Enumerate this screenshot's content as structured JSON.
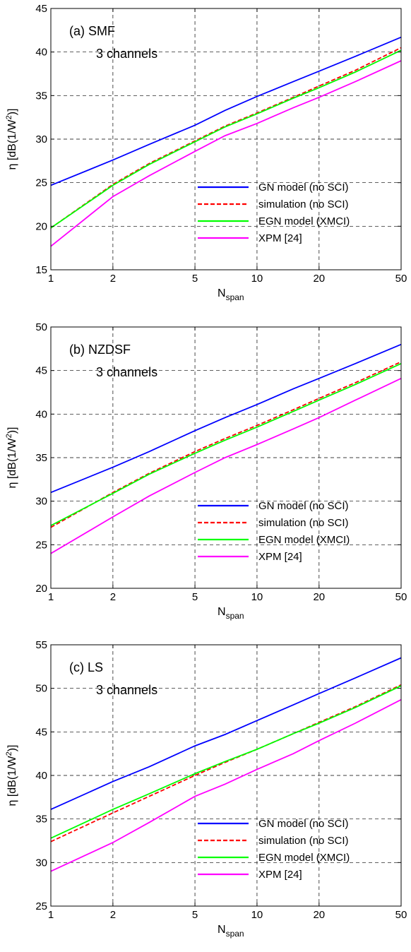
{
  "chart_data": [
    {
      "type": "line",
      "panel_label": "(a) SMF",
      "subtitle": "3 channels",
      "xlabel_main": "N",
      "xlabel_sub": "span",
      "ylabel_main": "η [dB(1/W",
      "ylabel_sup": "2",
      "ylabel_end": ")]",
      "x_scale": "log",
      "xlim": [
        1,
        50
      ],
      "ylim": [
        15,
        45
      ],
      "xticks": [
        1,
        2,
        5,
        10,
        20,
        50
      ],
      "xticklabels": [
        "1",
        "2",
        "5",
        "10",
        "20",
        "50"
      ],
      "yticks": [
        15,
        20,
        25,
        30,
        35,
        40,
        45
      ],
      "yticklabels": [
        "15",
        "20",
        "25",
        "30",
        "35",
        "40",
        "45"
      ],
      "grid": "dashed",
      "legend_position": "lower-right",
      "series": [
        {
          "name": "GN model (no SCI)",
          "color": "#0000ff",
          "dash": "solid",
          "x": [
            1,
            2,
            3,
            5,
            7,
            10,
            15,
            20,
            30,
            50
          ],
          "y": [
            24.7,
            27.6,
            29.4,
            31.6,
            33.3,
            34.9,
            36.6,
            37.8,
            39.5,
            41.7
          ]
        },
        {
          "name": "simulation (no SCI)",
          "color": "#ff0000",
          "dash": "dashed",
          "x": [
            1,
            2,
            3,
            5,
            7,
            10,
            15,
            20,
            30,
            50
          ],
          "y": [
            19.8,
            24.8,
            27.2,
            29.8,
            31.5,
            33.0,
            34.8,
            36.1,
            37.9,
            40.5
          ]
        },
        {
          "name": "EGN model (XMCI)",
          "color": "#00ff00",
          "dash": "solid",
          "x": [
            1,
            2,
            3,
            5,
            7,
            10,
            15,
            20,
            30,
            50
          ],
          "y": [
            19.8,
            24.7,
            27.1,
            29.7,
            31.4,
            32.9,
            34.7,
            35.9,
            37.7,
            40.2
          ]
        },
        {
          "name": "XPM [24]",
          "color": "#ff00ff",
          "dash": "solid",
          "x": [
            1,
            2,
            3,
            5,
            7,
            10,
            15,
            20,
            30,
            50
          ],
          "y": [
            17.7,
            23.4,
            25.8,
            28.6,
            30.4,
            31.8,
            33.6,
            34.8,
            36.6,
            39.0
          ]
        }
      ]
    },
    {
      "type": "line",
      "panel_label": "(b) NZDSF",
      "subtitle": "3 channels",
      "xlabel_main": "N",
      "xlabel_sub": "span",
      "ylabel_main": "η [dB(1/W",
      "ylabel_sup": "2",
      "ylabel_end": ")]",
      "x_scale": "log",
      "xlim": [
        1,
        50
      ],
      "ylim": [
        20,
        50
      ],
      "xticks": [
        1,
        2,
        5,
        10,
        20,
        50
      ],
      "xticklabels": [
        "1",
        "2",
        "5",
        "10",
        "20",
        "50"
      ],
      "yticks": [
        20,
        25,
        30,
        35,
        40,
        45,
        50
      ],
      "yticklabels": [
        "20",
        "25",
        "30",
        "35",
        "40",
        "45",
        "50"
      ],
      "grid": "dashed",
      "legend_position": "lower-right",
      "series": [
        {
          "name": "GN model (no SCI)",
          "color": "#0000ff",
          "dash": "solid",
          "x": [
            1,
            2,
            3,
            5,
            7,
            10,
            15,
            20,
            30,
            50
          ],
          "y": [
            31.0,
            33.9,
            35.7,
            38.1,
            39.6,
            41.1,
            42.9,
            44.1,
            45.8,
            48.0
          ]
        },
        {
          "name": "simulation (no SCI)",
          "color": "#ff0000",
          "dash": "dashed",
          "x": [
            1,
            2,
            3,
            5,
            7,
            10,
            15,
            20,
            30,
            50
          ],
          "y": [
            27.0,
            31.0,
            33.2,
            35.7,
            37.2,
            38.7,
            40.5,
            41.8,
            43.6,
            46.0
          ]
        },
        {
          "name": "EGN model (XMCI)",
          "color": "#00ff00",
          "dash": "solid",
          "x": [
            1,
            2,
            3,
            5,
            7,
            10,
            15,
            20,
            30,
            50
          ],
          "y": [
            27.2,
            30.9,
            33.1,
            35.5,
            37.0,
            38.5,
            40.3,
            41.6,
            43.4,
            45.8
          ]
        },
        {
          "name": "XPM [24]",
          "color": "#ff00ff",
          "dash": "solid",
          "x": [
            1,
            2,
            3,
            5,
            7,
            10,
            15,
            20,
            30,
            50
          ],
          "y": [
            24.0,
            28.2,
            30.6,
            33.3,
            35.0,
            36.5,
            38.3,
            39.6,
            41.6,
            44.1
          ]
        }
      ]
    },
    {
      "type": "line",
      "panel_label": "(c) LS",
      "subtitle": "3 channels",
      "xlabel_main": "N",
      "xlabel_sub": "span",
      "ylabel_main": "η [dB(1/W",
      "ylabel_sup": "2",
      "ylabel_end": ")]",
      "x_scale": "log",
      "xlim": [
        1,
        50
      ],
      "ylim": [
        25,
        55
      ],
      "xticks": [
        1,
        2,
        5,
        10,
        20,
        50
      ],
      "xticklabels": [
        "1",
        "2",
        "5",
        "10",
        "20",
        "50"
      ],
      "yticks": [
        25,
        30,
        35,
        40,
        45,
        50,
        55
      ],
      "yticklabels": [
        "25",
        "30",
        "35",
        "40",
        "45",
        "50",
        "55"
      ],
      "grid": "dashed",
      "legend_position": "lower-right",
      "series": [
        {
          "name": "GN model (no SCI)",
          "color": "#0000ff",
          "dash": "solid",
          "x": [
            1,
            2,
            3,
            5,
            7,
            10,
            15,
            20,
            30,
            50
          ],
          "y": [
            36.1,
            39.3,
            41.0,
            43.4,
            44.7,
            46.3,
            48.1,
            49.4,
            51.2,
            53.5
          ]
        },
        {
          "name": "simulation (no SCI)",
          "color": "#ff0000",
          "dash": "dashed",
          "x": [
            1,
            2,
            3,
            5,
            7,
            10,
            15,
            20,
            30,
            50
          ],
          "y": [
            32.4,
            35.7,
            37.6,
            40.0,
            41.5,
            43.0,
            44.8,
            46.1,
            47.9,
            50.4
          ]
        },
        {
          "name": "EGN model (XMCI)",
          "color": "#00ff00",
          "dash": "solid",
          "x": [
            1,
            2,
            3,
            5,
            7,
            10,
            15,
            20,
            30,
            50
          ],
          "y": [
            32.8,
            36.1,
            37.9,
            40.2,
            41.6,
            43.0,
            44.8,
            46.0,
            47.8,
            50.3
          ]
        },
        {
          "name": "XPM [24]",
          "color": "#ff00ff",
          "dash": "solid",
          "x": [
            1,
            2,
            3,
            5,
            7,
            10,
            15,
            20,
            30,
            50
          ],
          "y": [
            29.0,
            32.3,
            34.6,
            37.6,
            39.0,
            40.7,
            42.5,
            44.0,
            46.0,
            48.7
          ]
        }
      ]
    }
  ]
}
